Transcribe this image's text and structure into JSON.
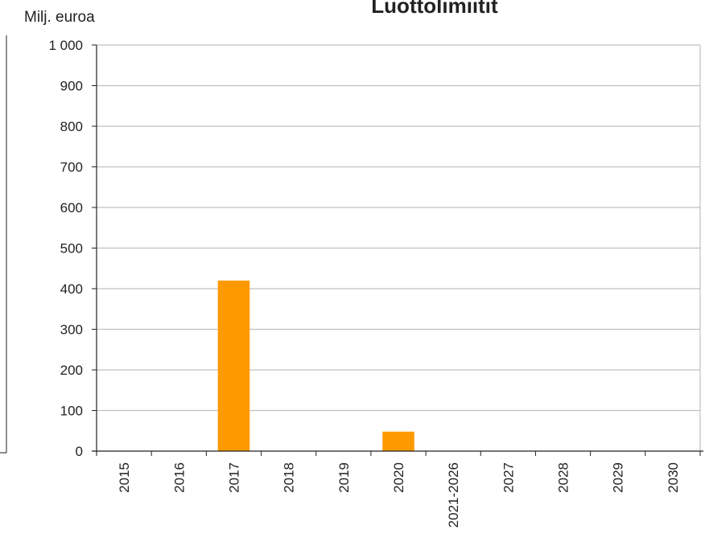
{
  "chart_data": {
    "type": "bar",
    "title": "Luottolimiitit",
    "ylabel": "Milj. euroa",
    "xlabel": "",
    "categories": [
      "2015",
      "2016",
      "2017",
      "2018",
      "2019",
      "2020",
      "2021-2026",
      "2027",
      "2028",
      "2029",
      "2030"
    ],
    "values": [
      0,
      0,
      420,
      0,
      0,
      48,
      0,
      0,
      0,
      0,
      0
    ],
    "ylim": [
      0,
      1000
    ],
    "yticks": [
      0,
      100,
      200,
      300,
      400,
      500,
      600,
      700,
      800,
      900,
      1000
    ],
    "ytick_labels": [
      "0",
      "100",
      "200",
      "300",
      "400",
      "500",
      "600",
      "700",
      "800",
      "900",
      "1 000"
    ],
    "grid": true,
    "legend": "none",
    "colors": {
      "bar": "#FF9900",
      "grid": "#C0C0C0",
      "axis": "#222222"
    }
  }
}
